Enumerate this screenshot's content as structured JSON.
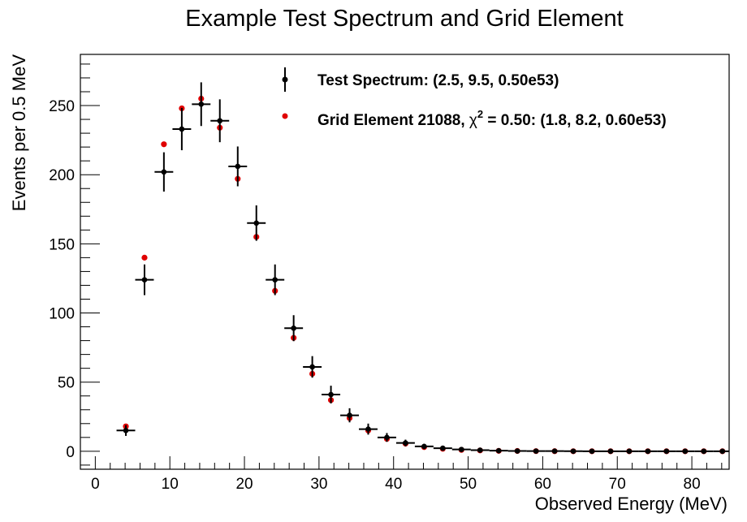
{
  "chart_data": {
    "type": "scatter",
    "title": "Example Test Spectrum and Grid Element",
    "xlabel": "Observed Energy (MeV)",
    "ylabel": "Events per 0.5 MeV",
    "xlim": [
      -2,
      85
    ],
    "ylim": [
      -13,
      287
    ],
    "x_ticks": [
      0,
      10,
      20,
      30,
      40,
      50,
      60,
      70,
      80
    ],
    "y_ticks": [
      0,
      50,
      100,
      150,
      200,
      250
    ],
    "grid": false,
    "legend_position": "top-right",
    "bin_half_width": 1.25,
    "series": [
      {
        "name": "Test Spectrum: (2.5, 9.5, 0.50e53)",
        "color": "#000000",
        "marker": "circle-with-error-bars",
        "x": [
          4.1,
          6.6,
          9.2,
          11.6,
          14.2,
          16.7,
          19.1,
          21.6,
          24.1,
          26.6,
          29.1,
          31.6,
          34.1,
          36.6,
          39.1,
          41.6,
          44.1,
          46.6,
          49.1,
          51.6,
          54.1,
          56.6,
          59.1,
          61.6,
          64.1,
          66.6,
          69.1,
          71.6,
          74.1,
          76.6,
          79.1,
          81.6,
          84.1
        ],
        "y": [
          15,
          124,
          202,
          233,
          251,
          239,
          206,
          165,
          124,
          89,
          61,
          41,
          26,
          16,
          10,
          6,
          3.5,
          2.2,
          1.3,
          0.8,
          0.4,
          0.2,
          0.1,
          0.1,
          0.05,
          0,
          0,
          0,
          0,
          0,
          0,
          0,
          0
        ],
        "yerr": [
          3.9,
          11.1,
          14.2,
          15.3,
          15.8,
          15.5,
          14.4,
          12.8,
          11.1,
          9.4,
          7.8,
          6.4,
          5.1,
          4,
          3.2,
          2.4,
          1.9,
          1.5,
          1.1,
          0.9,
          0.6,
          0.4,
          0.3,
          0.3,
          0.2,
          0,
          0,
          0,
          0,
          0,
          0,
          0,
          0
        ]
      },
      {
        "name": "Grid Element 21088, χ² = 0.50: (1.8, 8.2, 0.60e53)",
        "color": "#e00000",
        "marker": "circle",
        "x": [
          4.1,
          6.6,
          9.2,
          11.6,
          14.2,
          16.7,
          19.1,
          21.6,
          24.1,
          26.6,
          29.1,
          31.6,
          34.1,
          36.6,
          39.1,
          41.6,
          44.1,
          46.6,
          49.1,
          51.6,
          54.1,
          56.6,
          59.1,
          61.6,
          64.1,
          66.6,
          69.1,
          71.6,
          74.1,
          76.6,
          79.1,
          81.6,
          84.1
        ],
        "y": [
          18,
          140,
          222,
          248,
          255,
          234,
          197,
          155,
          116,
          82,
          56,
          37,
          24,
          15,
          9,
          5.5,
          3,
          1.8,
          1,
          0.6,
          0.3,
          0.2,
          0.1,
          0.05,
          0,
          0,
          0,
          0,
          0,
          0,
          0,
          0,
          0
        ]
      }
    ]
  },
  "legend": {
    "test_label": "Test Spectrum: (2.5, 9.5, 0.50e53)",
    "grid_label_prefix": "Grid Element 21088, ",
    "grid_label_chi": "χ",
    "grid_label_sup": "2",
    "grid_label_suffix": " = 0.50: (1.8, 8.2, 0.60e53)"
  }
}
